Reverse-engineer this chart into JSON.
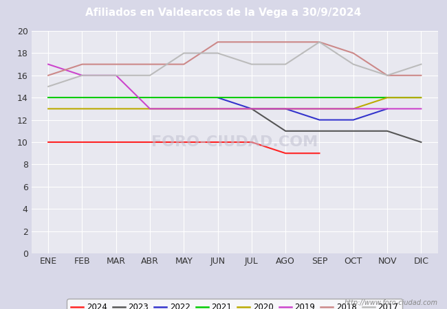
{
  "title": "Afiliados en Valdearcos de la Vega a 30/9/2024",
  "title_color": "#ffffff",
  "title_bg_color": "#4472c4",
  "months": [
    "ENE",
    "FEB",
    "MAR",
    "ABR",
    "MAY",
    "JUN",
    "JUL",
    "AGO",
    "SEP",
    "OCT",
    "NOV",
    "DIC"
  ],
  "watermark": "http://www.foro-ciudad.com",
  "series": {
    "2024": {
      "color": "#ff2222",
      "values": [
        10,
        10,
        10,
        10,
        10,
        10,
        10,
        9,
        9,
        null,
        null,
        null
      ]
    },
    "2023": {
      "color": "#555555",
      "values": [
        null,
        null,
        null,
        null,
        null,
        null,
        13,
        11,
        11,
        11,
        11,
        10
      ]
    },
    "2022": {
      "color": "#3333cc",
      "values": [
        null,
        null,
        null,
        null,
        null,
        14,
        13,
        13,
        12,
        12,
        13,
        null
      ]
    },
    "2021": {
      "color": "#00cc00",
      "values": [
        14,
        14,
        14,
        14,
        14,
        14,
        14,
        14,
        14,
        14,
        14,
        14
      ]
    },
    "2020": {
      "color": "#bbaa00",
      "values": [
        13,
        13,
        13,
        13,
        13,
        13,
        13,
        13,
        13,
        13,
        14,
        14
      ]
    },
    "2019": {
      "color": "#cc44cc",
      "values": [
        17,
        16,
        16,
        13,
        13,
        13,
        13,
        13,
        13,
        13,
        13,
        13
      ]
    },
    "2018": {
      "color": "#cc8888",
      "values": [
        16,
        17,
        17,
        17,
        17,
        19,
        19,
        19,
        19,
        18,
        16,
        16
      ]
    },
    "2017": {
      "color": "#bbbbbb",
      "values": [
        15,
        16,
        16,
        16,
        18,
        18,
        17,
        17,
        19,
        17,
        16,
        17
      ]
    }
  },
  "legend_order": [
    "2024",
    "2023",
    "2022",
    "2021",
    "2020",
    "2019",
    "2018",
    "2017"
  ],
  "ylim": [
    0,
    20
  ],
  "yticks": [
    0,
    2,
    4,
    6,
    8,
    10,
    12,
    14,
    16,
    18,
    20
  ],
  "bg_color": "#d8d8e8",
  "plot_bg_color": "#e8e8f0",
  "grid_color": "#ffffff",
  "font_size": 9,
  "linewidth": 1.5
}
